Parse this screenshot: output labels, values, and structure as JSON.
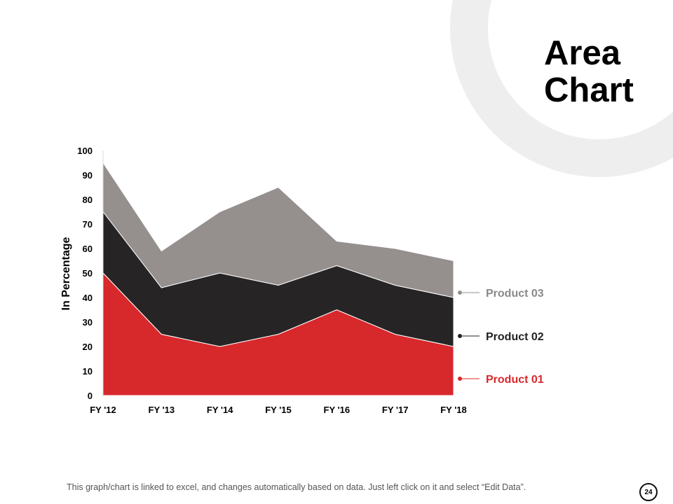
{
  "slide": {
    "title_line1": "Area",
    "title_line2": "Chart",
    "footer_note": "This graph/chart is linked to excel, and changes automatically based on data. Just left click on it and select “Edit Data”.",
    "page_number": "24",
    "ring_color": "#eeeeee"
  },
  "chart_data": {
    "type": "area",
    "stacked": true,
    "categories": [
      "FY '12",
      "FY '13",
      "FY '14",
      "FY '15",
      "FY '16",
      "FY '17",
      "FY '18"
    ],
    "ylabel": "In Percentage",
    "ylim": [
      0,
      100
    ],
    "yticks": [
      "0",
      "10",
      "20",
      "30",
      "40",
      "50",
      "60",
      "70",
      "80",
      "90",
      "100"
    ],
    "grid": false,
    "legend_position": "right",
    "series": [
      {
        "name": "Product 01",
        "color": "#d7282c",
        "label_color": "#d7282c",
        "values": [
          50,
          25,
          20,
          25,
          35,
          25,
          20
        ]
      },
      {
        "name": "Product 02",
        "color": "#272425",
        "label_color": "#222222",
        "values": [
          25,
          19,
          30,
          20,
          18,
          20,
          20
        ]
      },
      {
        "name": "Product 03",
        "color": "#958f8e",
        "label_color": "#8a8a8a",
        "values": [
          20,
          15,
          25,
          40,
          10,
          15,
          15
        ]
      }
    ]
  }
}
